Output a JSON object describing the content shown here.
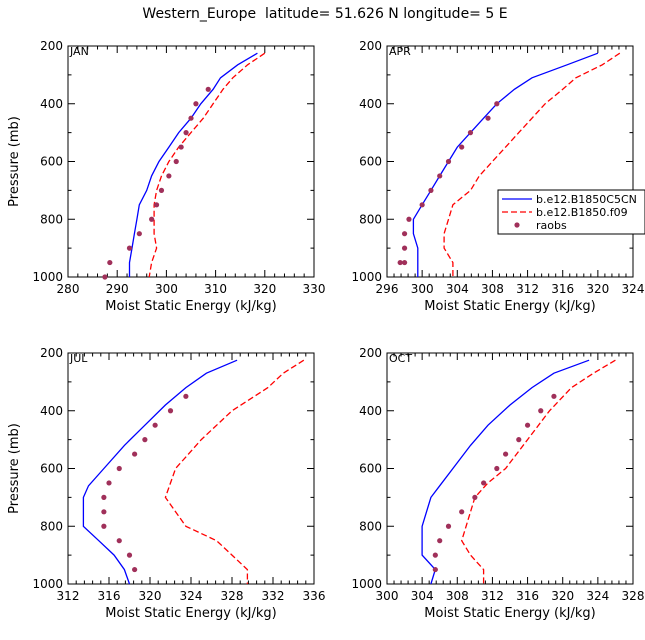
{
  "title": "Western_Europe  latitude= 51.626 N longitude= 5 E",
  "colors": {
    "model1": "#0000ff",
    "model2": "#ff0000",
    "raobs": "#a0305a",
    "axis": "#000000"
  },
  "legend": {
    "placement": "right of APR panel",
    "entries": [
      "b.e12.B1850C5CN",
      "b.e12.B1850.f09",
      "raobs"
    ]
  },
  "chart_data": [
    {
      "type": "line",
      "panel": "JAN",
      "xlabel": "Moist Static Energy (kJ/kg)",
      "ylabel": "Pressure (mb)",
      "xlim": [
        280,
        330
      ],
      "ylim": [
        1000,
        200
      ],
      "y_inverted": true,
      "xticks": [
        280,
        290,
        300,
        310,
        320,
        330
      ],
      "yticks": [
        200,
        400,
        600,
        800,
        1000
      ],
      "series": [
        {
          "name": "b.e12.B1850C5CN",
          "style": "solid",
          "points": [
            [
              318.5,
              225
            ],
            [
              314.5,
              265
            ],
            [
              311,
              310
            ],
            [
              309.5,
              350
            ],
            [
              307,
              400
            ],
            [
              305,
              450
            ],
            [
              302.5,
              500
            ],
            [
              300.5,
              550
            ],
            [
              298.5,
              600
            ],
            [
              297,
              650
            ],
            [
              296,
              700
            ],
            [
              294.5,
              750
            ],
            [
              294,
              800
            ],
            [
              293.5,
              850
            ],
            [
              293,
              900
            ],
            [
              292.5,
              950
            ],
            [
              292.5,
              1000
            ]
          ]
        },
        {
          "name": "b.e12.B1850.f09",
          "style": "dashed",
          "points": [
            [
              320,
              225
            ],
            [
              316.5,
              265
            ],
            [
              313.5,
              310
            ],
            [
              311.5,
              350
            ],
            [
              309.5,
              400
            ],
            [
              307.5,
              450
            ],
            [
              305,
              500
            ],
            [
              302.5,
              550
            ],
            [
              300.5,
              600
            ],
            [
              299,
              650
            ],
            [
              298,
              700
            ],
            [
              297.5,
              750
            ],
            [
              297.5,
              800
            ],
            [
              297.5,
              850
            ],
            [
              298,
              900
            ],
            [
              297,
              950
            ],
            [
              296.5,
              1000
            ]
          ]
        },
        {
          "name": "raobs",
          "style": "markers",
          "points": [
            [
              308.5,
              350
            ],
            [
              306,
              400
            ],
            [
              305,
              450
            ],
            [
              304,
              500
            ],
            [
              303,
              550
            ],
            [
              302,
              600
            ],
            [
              300.5,
              650
            ],
            [
              299,
              700
            ],
            [
              298,
              750
            ],
            [
              297,
              800
            ],
            [
              294.5,
              850
            ],
            [
              292.5,
              900
            ],
            [
              288.5,
              950
            ],
            [
              287.5,
              1000
            ]
          ]
        }
      ]
    },
    {
      "type": "line",
      "panel": "APR",
      "xlabel": "Moist Static Energy (kJ/kg)",
      "ylabel": "",
      "xlim": [
        296,
        324
      ],
      "ylim": [
        1000,
        200
      ],
      "y_inverted": true,
      "xticks": [
        296,
        300,
        304,
        308,
        312,
        316,
        320,
        324
      ],
      "yticks": [
        200,
        400,
        600,
        800,
        1000
      ],
      "series": [
        {
          "name": "b.e12.B1850C5CN",
          "style": "solid",
          "points": [
            [
              320,
              225
            ],
            [
              316.5,
              265
            ],
            [
              312.5,
              310
            ],
            [
              310.5,
              350
            ],
            [
              308.5,
              400
            ],
            [
              307,
              450
            ],
            [
              305.5,
              500
            ],
            [
              304,
              550
            ],
            [
              303,
              600
            ],
            [
              302,
              650
            ],
            [
              301,
              700
            ],
            [
              300,
              750
            ],
            [
              299,
              800
            ],
            [
              299,
              850
            ],
            [
              299.5,
              900
            ],
            [
              299.5,
              950
            ],
            [
              299.5,
              1000
            ]
          ]
        },
        {
          "name": "b.e12.B1850.f09",
          "style": "dashed",
          "points": [
            [
              322.5,
              225
            ],
            [
              320.5,
              265
            ],
            [
              317.5,
              310
            ],
            [
              316,
              350
            ],
            [
              314,
              400
            ],
            [
              312.5,
              450
            ],
            [
              311,
              500
            ],
            [
              309.5,
              550
            ],
            [
              308,
              600
            ],
            [
              306.5,
              650
            ],
            [
              305.5,
              700
            ],
            [
              303.5,
              750
            ],
            [
              303,
              800
            ],
            [
              302.5,
              850
            ],
            [
              302.5,
              900
            ],
            [
              303.5,
              950
            ],
            [
              303.5,
              1000
            ]
          ]
        },
        {
          "name": "raobs",
          "style": "markers",
          "points": [
            [
              308.5,
              400
            ],
            [
              307.5,
              450
            ],
            [
              305.5,
              500
            ],
            [
              304.5,
              550
            ],
            [
              303,
              600
            ],
            [
              302,
              650
            ],
            [
              301,
              700
            ],
            [
              300,
              750
            ],
            [
              298.5,
              800
            ],
            [
              298,
              850
            ],
            [
              298,
              900
            ],
            [
              298,
              950
            ],
            [
              297.5,
              950
            ]
          ]
        }
      ]
    },
    {
      "type": "line",
      "panel": "JUL",
      "xlabel": "Moist Static Energy (kJ/kg)",
      "ylabel": "Pressure (mb)",
      "xlim": [
        312,
        336
      ],
      "ylim": [
        1000,
        200
      ],
      "y_inverted": true,
      "xticks": [
        312,
        316,
        320,
        324,
        328,
        332,
        336
      ],
      "yticks": [
        200,
        400,
        600,
        800,
        1000
      ],
      "series": [
        {
          "name": "b.e12.B1850C5CN",
          "style": "solid",
          "points": [
            [
              328.5,
              225
            ],
            [
              325.5,
              270
            ],
            [
              323.5,
              320
            ],
            [
              321.5,
              380
            ],
            [
              319.5,
              450
            ],
            [
              317.5,
              520
            ],
            [
              315.5,
              600
            ],
            [
              314,
              660
            ],
            [
              313.5,
              700
            ],
            [
              313.5,
              800
            ],
            [
              315,
              850
            ],
            [
              316.5,
              900
            ],
            [
              317.5,
              950
            ],
            [
              318,
              1000
            ]
          ]
        },
        {
          "name": "b.e12.B1850.f09",
          "style": "dashed",
          "points": [
            [
              335,
              225
            ],
            [
              333,
              270
            ],
            [
              331.5,
              320
            ],
            [
              328,
              400
            ],
            [
              325,
              500
            ],
            [
              322.5,
              600
            ],
            [
              321.5,
              700
            ],
            [
              323.5,
              800
            ],
            [
              326.5,
              850
            ],
            [
              328,
              900
            ],
            [
              329.5,
              950
            ],
            [
              329.5,
              1000
            ]
          ]
        },
        {
          "name": "raobs",
          "style": "markers",
          "points": [
            [
              323.5,
              350
            ],
            [
              322,
              400
            ],
            [
              320.5,
              450
            ],
            [
              319.5,
              500
            ],
            [
              318.5,
              550
            ],
            [
              317,
              600
            ],
            [
              316,
              650
            ],
            [
              315.5,
              700
            ],
            [
              315.5,
              750
            ],
            [
              315.5,
              800
            ],
            [
              317,
              850
            ],
            [
              318,
              900
            ],
            [
              318.5,
              950
            ]
          ]
        }
      ]
    },
    {
      "type": "line",
      "panel": "OCT",
      "xlabel": "Moist Static Energy (kJ/kg)",
      "ylabel": "",
      "xlim": [
        300,
        328
      ],
      "ylim": [
        1000,
        200
      ],
      "y_inverted": true,
      "xticks": [
        300,
        304,
        308,
        312,
        316,
        320,
        324,
        328
      ],
      "yticks": [
        200,
        400,
        600,
        800,
        1000
      ],
      "series": [
        {
          "name": "b.e12.B1850C5CN",
          "style": "solid",
          "points": [
            [
              323,
              225
            ],
            [
              319,
              270
            ],
            [
              316.5,
              320
            ],
            [
              314,
              380
            ],
            [
              311.5,
              450
            ],
            [
              309.5,
              520
            ],
            [
              307.5,
              600
            ],
            [
              306,
              660
            ],
            [
              305,
              700
            ],
            [
              304,
              800
            ],
            [
              304,
              850
            ],
            [
              304,
              900
            ],
            [
              305.5,
              950
            ],
            [
              305,
              1000
            ]
          ]
        },
        {
          "name": "b.e12.B1850.f09",
          "style": "dashed",
          "points": [
            [
              326,
              225
            ],
            [
              323.5,
              270
            ],
            [
              321,
              320
            ],
            [
              318.5,
              400
            ],
            [
              316,
              500
            ],
            [
              313.5,
              600
            ],
            [
              311.5,
              650
            ],
            [
              310,
              700
            ],
            [
              309,
              800
            ],
            [
              308.5,
              850
            ],
            [
              309.5,
              900
            ],
            [
              311,
              950
            ],
            [
              311,
              1000
            ]
          ]
        },
        {
          "name": "raobs",
          "style": "markers",
          "points": [
            [
              319,
              350
            ],
            [
              317.5,
              400
            ],
            [
              316,
              450
            ],
            [
              315,
              500
            ],
            [
              313.5,
              550
            ],
            [
              312.5,
              600
            ],
            [
              311,
              650
            ],
            [
              310,
              700
            ],
            [
              308.5,
              750
            ],
            [
              307,
              800
            ],
            [
              306,
              850
            ],
            [
              305.5,
              900
            ],
            [
              305.5,
              950
            ]
          ]
        }
      ]
    }
  ]
}
